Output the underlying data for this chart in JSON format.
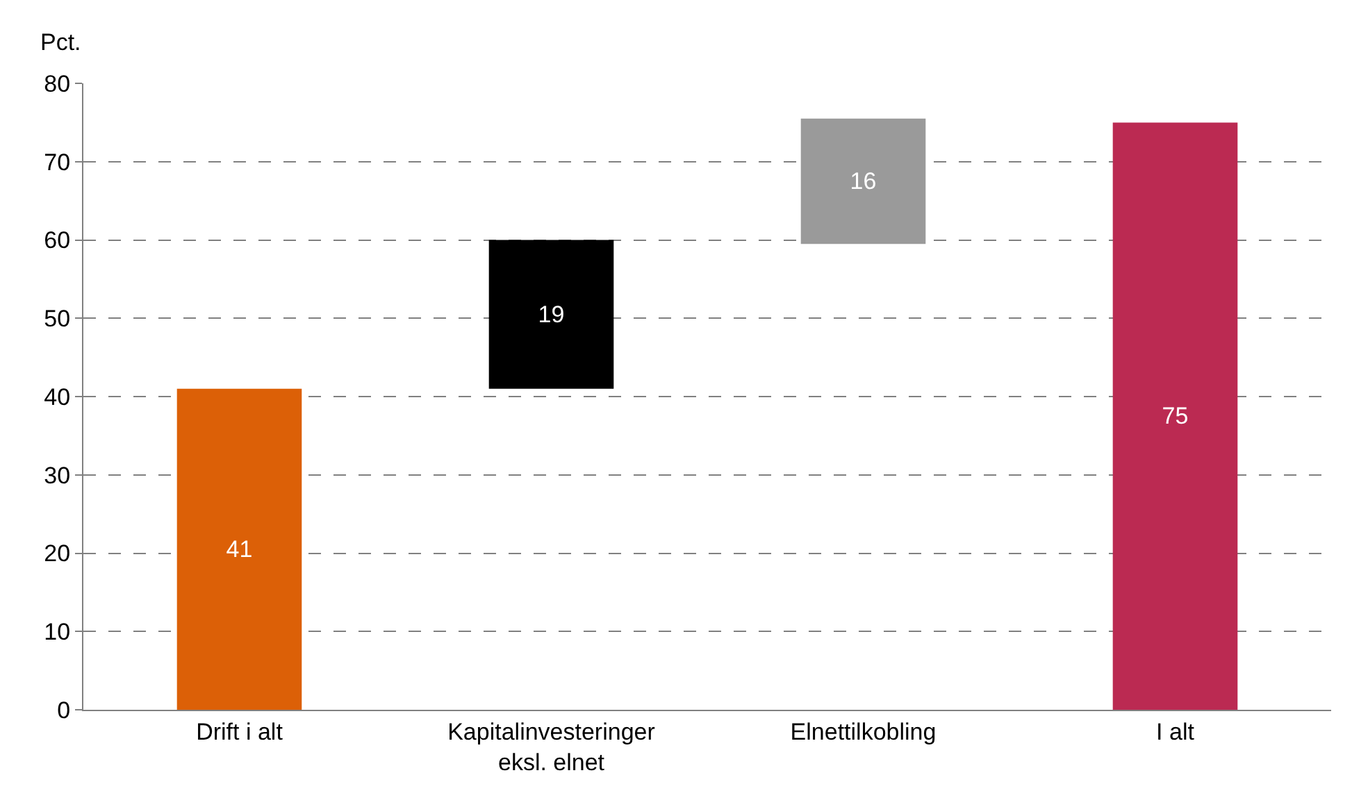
{
  "chart_data": {
    "type": "bar",
    "ylabel": "Pct.",
    "categories": [
      "Drift i alt",
      "Kapitalinvesteringer\neksl. elnet",
      "Elnettilkobling",
      "I alt"
    ],
    "values": [
      41,
      19,
      16,
      75
    ],
    "base": [
      0,
      41,
      59.5,
      0
    ],
    "colors": [
      "#dc6007",
      "#000000",
      "#9a9a9a",
      "#bb2a52"
    ],
    "data_labels": true,
    "ylim": [
      0,
      80
    ],
    "yticks": [
      0,
      10,
      20,
      30,
      40,
      50,
      60,
      70,
      80
    ],
    "grid": "y"
  }
}
